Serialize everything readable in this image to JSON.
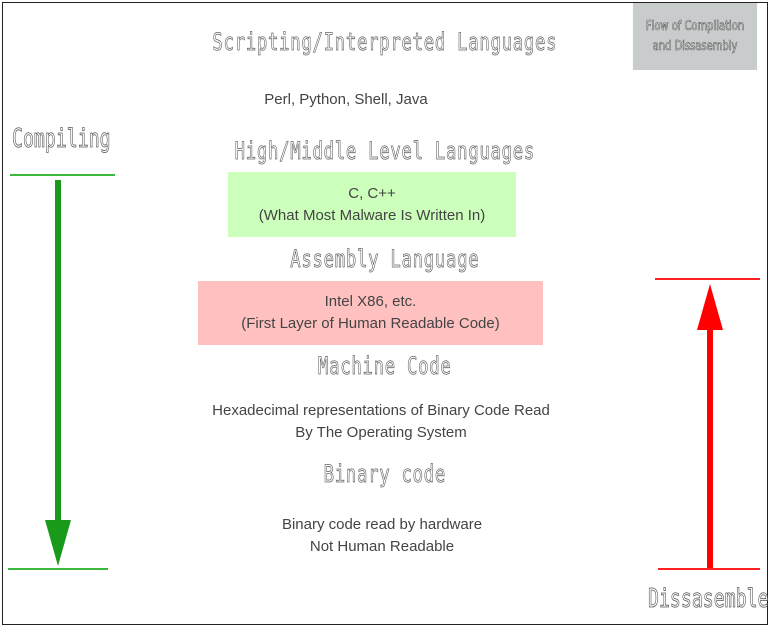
{
  "legend": {
    "line1": "Flow of Compilation",
    "line2": "and Dissasembly"
  },
  "layers": [
    {
      "title": "Scripting/Interpreted Languages",
      "lines": [
        "Perl, Python, Shell, Java"
      ],
      "color": "#ffffff"
    },
    {
      "title": "High/Middle Level Languages",
      "lines": [
        "C, C++",
        "(What Most Malware Is Written In)"
      ],
      "color": "#ccffbb"
    },
    {
      "title": "Assembly Language",
      "lines": [
        "Intel X86, etc.",
        "(First Layer of Human Readable Code)"
      ],
      "color": "#ffc0c0"
    },
    {
      "title": "Machine Code",
      "lines": [
        "Hexadecimal representations of Binary Code Read",
        "By The Operating System"
      ],
      "color": "#ffffff"
    },
    {
      "title": "Binary code",
      "lines": [
        "Binary code read by hardware",
        "Not Human Readable"
      ],
      "color": "#ffffff"
    }
  ],
  "compile": {
    "label": "Compiling",
    "color": "#1a9a1a",
    "direction": "down"
  },
  "disassemble": {
    "label": "Dissasemble",
    "color": "#ff0000",
    "direction": "up"
  }
}
